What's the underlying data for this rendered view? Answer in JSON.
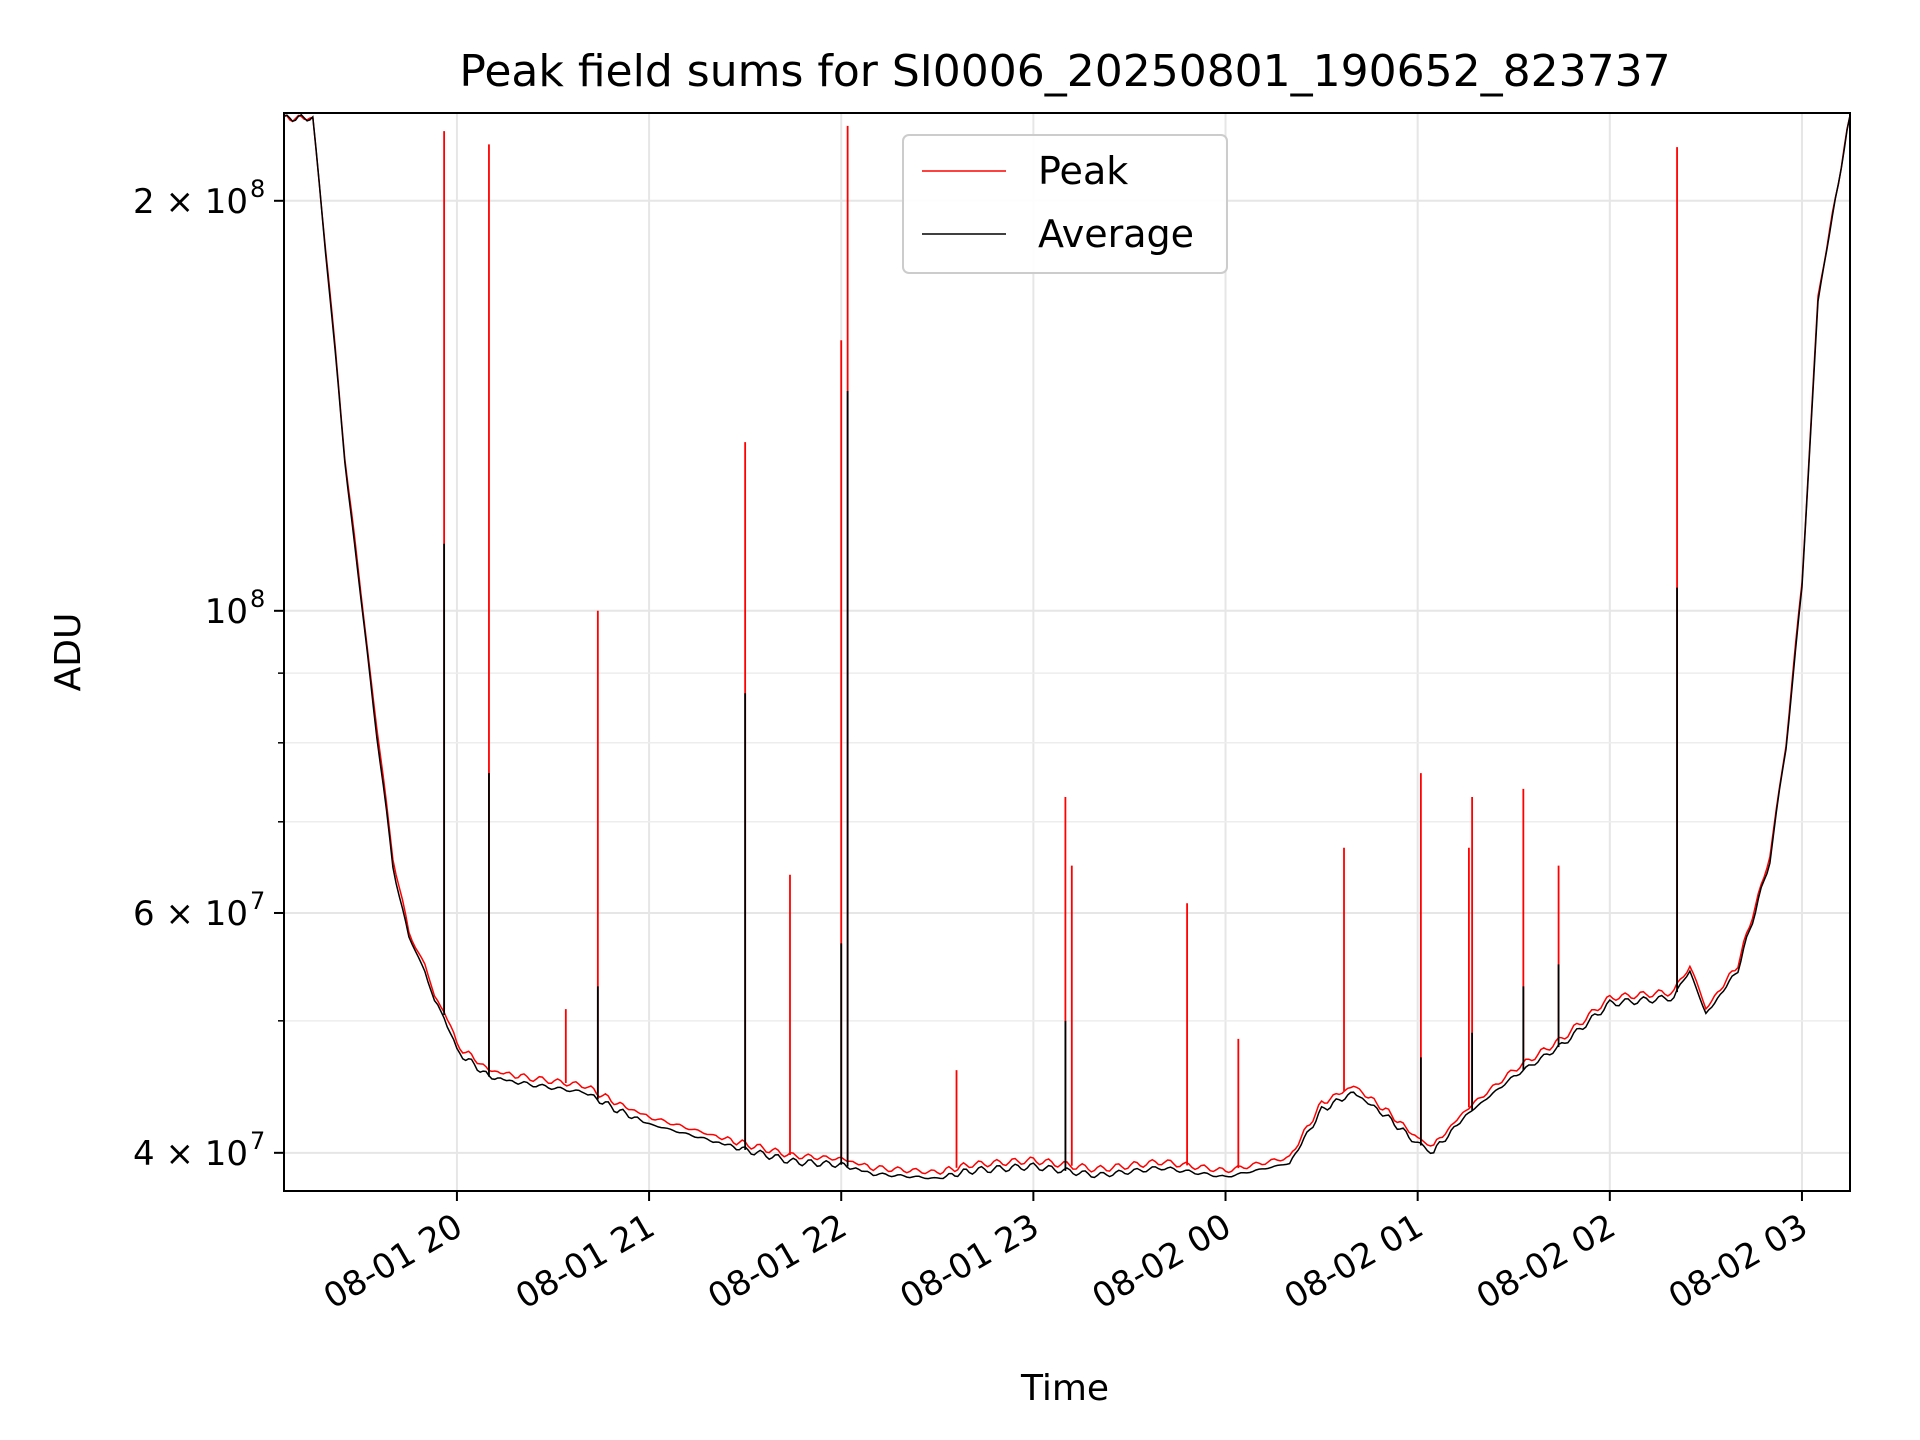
{
  "chart_data": {
    "type": "line",
    "title": "Peak field sums for SI0006_20250801_190652_823737",
    "xlabel": "Time",
    "ylabel": "ADU",
    "xscale": "time",
    "yscale": "log",
    "xlim": [
      "2025-08-01 19:06",
      "2025-08-02 03:15"
    ],
    "ylim": [
      37500000,
      232000000
    ],
    "grid": true,
    "legend_position": "top-center",
    "x_tick_labels": [
      "08-01 20",
      "08-01 21",
      "08-01 22",
      "08-01 23",
      "08-02 00",
      "08-02 01",
      "08-02 02",
      "08-02 03"
    ],
    "y_ticks": [
      {
        "value": 40000000,
        "label": "4 × 10",
        "exp": "7"
      },
      {
        "value": 60000000,
        "label": "6 × 10",
        "exp": "7"
      },
      {
        "value": 100000000,
        "label": "10",
        "exp": "8"
      },
      {
        "value": 200000000,
        "label": "2 × 10",
        "exp": "8"
      }
    ],
    "y_minor_ticks": [
      50000000,
      70000000,
      80000000,
      90000000
    ],
    "series": [
      {
        "name": "Peak",
        "color": "#ff0000",
        "x": [
          "2025-08-01 19:06",
          "2025-08-01 19:15",
          "2025-08-01 19:20",
          "2025-08-01 19:25",
          "2025-08-01 19:30",
          "2025-08-01 19:35",
          "2025-08-01 19:40",
          "2025-08-01 19:45",
          "2025-08-01 19:50",
          "2025-08-01 19:53",
          "2025-08-01 19:56",
          "2025-08-01 20:00",
          "2025-08-01 20:10",
          "2025-08-01 20:20",
          "2025-08-01 20:40",
          "2025-08-01 20:50",
          "2025-08-01 21:00",
          "2025-08-01 21:20",
          "2025-08-01 21:30",
          "2025-08-01 21:45",
          "2025-08-01 22:00",
          "2025-08-01 22:10",
          "2025-08-01 22:30",
          "2025-08-01 22:40",
          "2025-08-01 23:00",
          "2025-08-01 23:20",
          "2025-08-01 23:40",
          "2025-08-02 00:00",
          "2025-08-02 00:20",
          "2025-08-02 00:30",
          "2025-08-02 00:40",
          "2025-08-02 00:50",
          "2025-08-02 01:00",
          "2025-08-02 01:05",
          "2025-08-02 01:15",
          "2025-08-02 01:30",
          "2025-08-02 01:45",
          "2025-08-02 02:00",
          "2025-08-02 02:20",
          "2025-08-02 02:25",
          "2025-08-02 02:30",
          "2025-08-02 02:40",
          "2025-08-02 02:50",
          "2025-08-02 02:55",
          "2025-08-02 03:00",
          "2025-08-02 03:05",
          "2025-08-02 03:15"
        ],
        "y": [
          230000000,
          230000000,
          175000000,
          130000000,
          103000000,
          82000000,
          66000000,
          58000000,
          55000000,
          52000000,
          51000000,
          48000000,
          46000000,
          45500000,
          44800000,
          43500000,
          42500000,
          41200000,
          40600000,
          39800000,
          39600000,
          39000000,
          38700000,
          39200000,
          39500000,
          38900000,
          39400000,
          38800000,
          39700000,
          43500000,
          44800000,
          43000000,
          41000000,
          40500000,
          43000000,
          46000000,
          48500000,
          52000000,
          52500000,
          55000000,
          51000000,
          55000000,
          66000000,
          80000000,
          105000000,
          170000000,
          231000000
        ],
        "spikes": [
          {
            "x": "2025-08-01 19:14",
            "y": 229000000
          },
          {
            "x": "2025-08-01 19:56",
            "y": 225000000
          },
          {
            "x": "2025-08-01 20:10",
            "y": 220000000
          },
          {
            "x": "2025-08-01 20:34",
            "y": 51000000
          },
          {
            "x": "2025-08-01 20:44",
            "y": 100000000
          },
          {
            "x": "2025-08-01 21:30",
            "y": 133000000
          },
          {
            "x": "2025-08-01 21:44",
            "y": 64000000
          },
          {
            "x": "2025-08-01 22:00",
            "y": 158000000
          },
          {
            "x": "2025-08-01 22:02",
            "y": 227000000
          },
          {
            "x": "2025-08-01 22:36",
            "y": 46000000
          },
          {
            "x": "2025-08-01 23:10",
            "y": 73000000
          },
          {
            "x": "2025-08-01 23:12",
            "y": 65000000
          },
          {
            "x": "2025-08-01 23:48",
            "y": 61000000
          },
          {
            "x": "2025-08-02 00:04",
            "y": 48500000
          },
          {
            "x": "2025-08-02 00:37",
            "y": 67000000
          },
          {
            "x": "2025-08-02 01:01",
            "y": 76000000
          },
          {
            "x": "2025-08-02 01:16",
            "y": 67000000
          },
          {
            "x": "2025-08-02 01:17",
            "y": 73000000
          },
          {
            "x": "2025-08-02 01:33",
            "y": 74000000
          },
          {
            "x": "2025-08-02 01:44",
            "y": 65000000
          },
          {
            "x": "2025-08-02 02:21",
            "y": 219000000
          }
        ]
      },
      {
        "name": "Average",
        "color": "#000000",
        "x": [
          "2025-08-01 19:06",
          "2025-08-01 19:15",
          "2025-08-01 19:20",
          "2025-08-01 19:25",
          "2025-08-01 19:30",
          "2025-08-01 19:35",
          "2025-08-01 19:40",
          "2025-08-01 19:45",
          "2025-08-01 19:50",
          "2025-08-01 19:53",
          "2025-08-01 19:56",
          "2025-08-01 20:00",
          "2025-08-01 20:10",
          "2025-08-01 20:20",
          "2025-08-01 20:40",
          "2025-08-01 20:50",
          "2025-08-01 21:00",
          "2025-08-01 21:20",
          "2025-08-01 21:30",
          "2025-08-01 21:45",
          "2025-08-01 22:00",
          "2025-08-01 22:10",
          "2025-08-01 22:30",
          "2025-08-01 22:40",
          "2025-08-01 23:00",
          "2025-08-01 23:20",
          "2025-08-01 23:40",
          "2025-08-02 00:00",
          "2025-08-02 00:20",
          "2025-08-02 00:30",
          "2025-08-02 00:40",
          "2025-08-02 00:50",
          "2025-08-02 01:00",
          "2025-08-02 01:05",
          "2025-08-02 01:15",
          "2025-08-02 01:30",
          "2025-08-02 01:45",
          "2025-08-02 02:00",
          "2025-08-02 02:20",
          "2025-08-02 02:25",
          "2025-08-02 02:30",
          "2025-08-02 02:40",
          "2025-08-02 02:50",
          "2025-08-02 02:55",
          "2025-08-02 03:00",
          "2025-08-02 03:05",
          "2025-08-02 03:15"
        ],
        "y": [
          230000000,
          230000000,
          174000000,
          129000000,
          102000000,
          81000000,
          65000000,
          57500000,
          54500000,
          51500000,
          50500000,
          47500000,
          45500000,
          45000000,
          44300000,
          43000000,
          42000000,
          40800000,
          40200000,
          39400000,
          39200000,
          38600000,
          38300000,
          38800000,
          39100000,
          38500000,
          39000000,
          38400000,
          39300000,
          43000000,
          44300000,
          42600000,
          40600000,
          40100000,
          42600000,
          45500000,
          48000000,
          51500000,
          52000000,
          54500000,
          50500000,
          54500000,
          65500000,
          79500000,
          104000000,
          169000000,
          231000000
        ],
        "spikes": [
          {
            "x": "2025-08-01 19:56",
            "y": 112000000
          },
          {
            "x": "2025-08-01 20:10",
            "y": 76000000
          },
          {
            "x": "2025-08-01 20:44",
            "y": 53000000
          },
          {
            "x": "2025-08-01 21:30",
            "y": 87000000
          },
          {
            "x": "2025-08-01 22:00",
            "y": 57000000
          },
          {
            "x": "2025-08-01 22:02",
            "y": 145000000
          },
          {
            "x": "2025-08-01 23:10",
            "y": 50000000
          },
          {
            "x": "2025-08-02 01:01",
            "y": 47000000
          },
          {
            "x": "2025-08-02 01:17",
            "y": 49000000
          },
          {
            "x": "2025-08-02 01:33",
            "y": 53000000
          },
          {
            "x": "2025-08-02 01:44",
            "y": 55000000
          },
          {
            "x": "2025-08-02 02:21",
            "y": 104000000
          }
        ]
      }
    ]
  }
}
